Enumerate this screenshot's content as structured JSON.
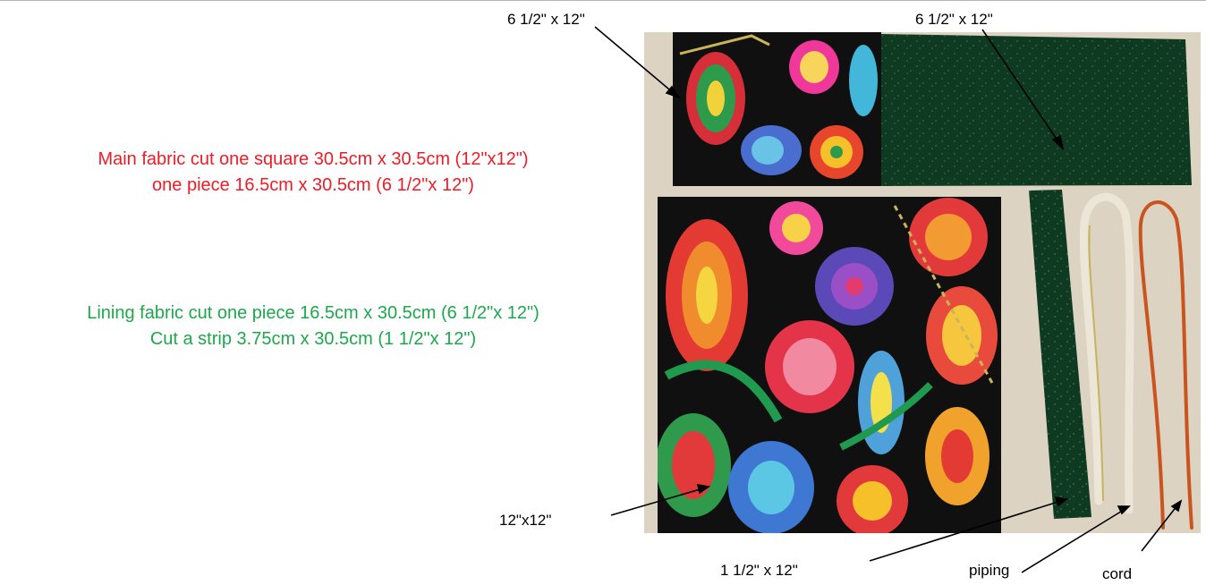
{
  "colors": {
    "main_text": "#ee1c25",
    "lining_text": "#1ca84b",
    "board": "#ddd3c2",
    "green_fabric": "#0f3a22",
    "print_bg": "#101010",
    "piping": "#ebe6d8",
    "cord": "#c9541e"
  },
  "main_fabric": {
    "line1": "Main fabric cut one square 30.5cm x 30.5cm (12\"x12\")",
    "line2": "one piece 16.5cm x 30.5cm (6 1/2\"x 12\")"
  },
  "lining_fabric": {
    "line1": "Lining fabric cut one piece 16.5cm x 30.5cm (6 1/2\"x 12\")",
    "line2": "Cut a strip 3.75cm x 30.5cm (1 1/2\"x 12\")"
  },
  "labels": {
    "main_piece": "6 1/2\" x 12\"",
    "lining_piece": "6 1/2\" x 12\"",
    "square": "12\"x12\"",
    "strip": "1 1/2\" x 12\"",
    "piping": "piping",
    "cord": "cord"
  }
}
